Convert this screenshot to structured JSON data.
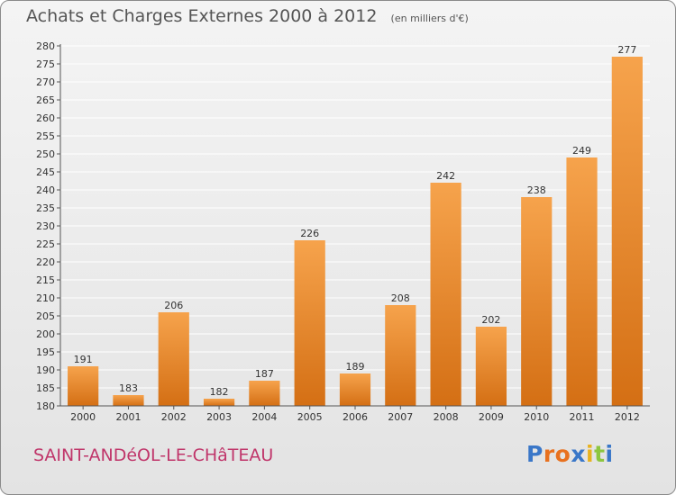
{
  "header": {
    "title": "Achats et Charges Externes 2000 à 2012",
    "unit": "(en milliers d'€)"
  },
  "footer": {
    "commune": "SAINT-ANDéOL-LE-CHâTEAU",
    "brand_letters": [
      "P",
      "r",
      "o",
      "x",
      "i",
      "t",
      "i"
    ],
    "brand_colors": [
      "#3a77c8",
      "#e8711f",
      "#e8711f",
      "#3a77c8",
      "#e8b21f",
      "#8dc63f",
      "#3a77c8"
    ]
  },
  "colors": {
    "bar_light": "#f6a34c",
    "bar_dark": "#d46f14",
    "grid": "#ffffff",
    "axis": "#555555"
  },
  "chart_data": {
    "type": "bar",
    "title": "Achats et Charges Externes 2000 à 2012",
    "subtitle": "(en milliers d'€)",
    "xlabel": "",
    "ylabel": "",
    "categories": [
      "2000",
      "2001",
      "2002",
      "2003",
      "2004",
      "2005",
      "2006",
      "2007",
      "2008",
      "2009",
      "2010",
      "2011",
      "2012"
    ],
    "values": [
      191,
      183,
      206,
      182,
      187,
      226,
      189,
      208,
      242,
      202,
      238,
      249,
      277
    ],
    "ylim": [
      180,
      280
    ],
    "ytick_step": 5,
    "grid": true,
    "legend": "none",
    "data_labels": true
  }
}
